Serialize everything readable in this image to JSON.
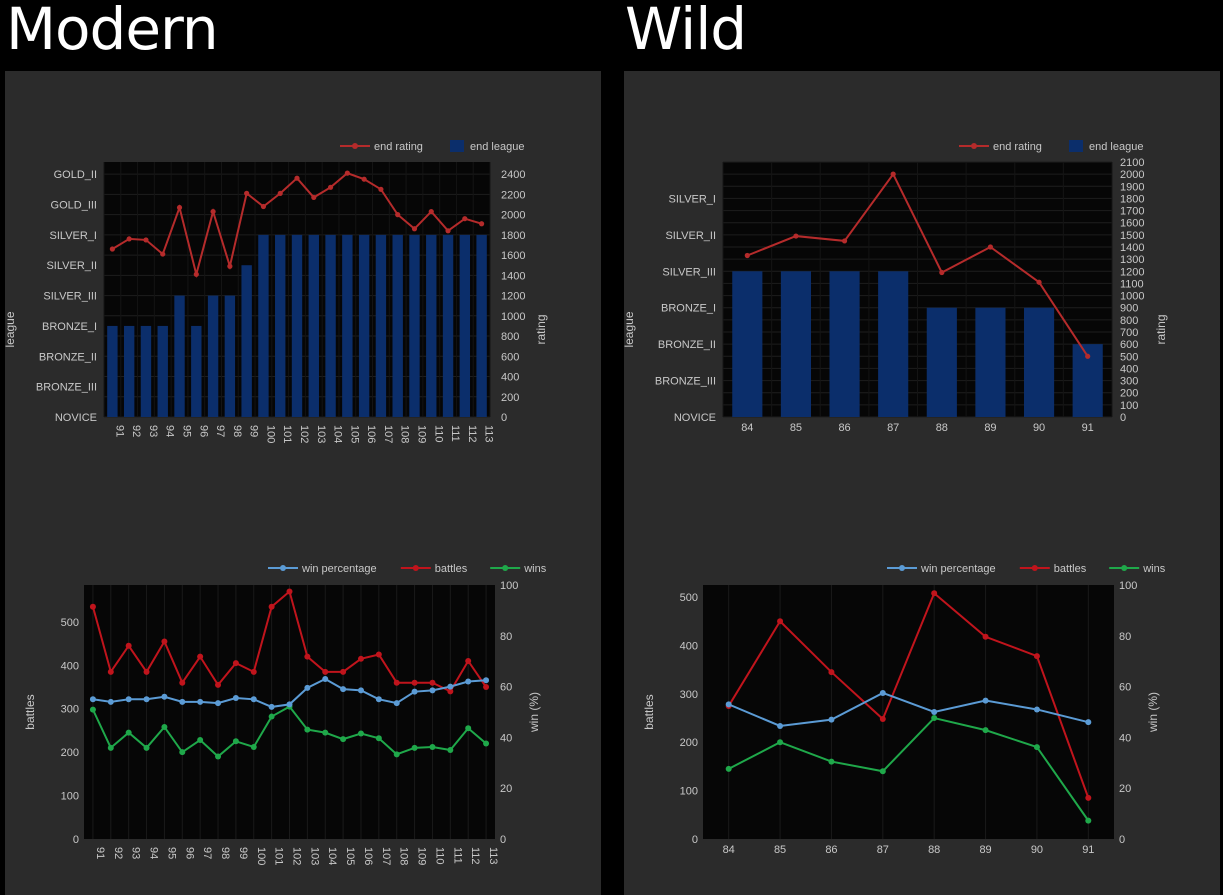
{
  "page": {
    "left_title": "Modern",
    "right_title": "Wild"
  },
  "colors": {
    "background": "#000000",
    "panel": "#2b2b2b",
    "plot": "#060606",
    "rating_line": "#b52b2b",
    "league_bar": "#0b2e6b",
    "win_percentage": "#5b9bd5",
    "battles": "#c0141c",
    "wins": "#1fa84a",
    "text": "#c8c8c8"
  },
  "chart_data": [
    {
      "id": "modern-rating",
      "type": "bar",
      "legend": [
        "end rating",
        "end league"
      ],
      "legend_position": "top-right",
      "ylabel_left": "league",
      "ylabel_right": "rating",
      "categories": [
        "91",
        "92",
        "93",
        "94",
        "95",
        "96",
        "97",
        "98",
        "99",
        "100",
        "101",
        "102",
        "103",
        "104",
        "105",
        "106",
        "107",
        "108",
        "109",
        "110",
        "111",
        "112",
        "113"
      ],
      "league_ticks": [
        "NOVICE",
        "BRONZE_III",
        "BRONZE_II",
        "BRONZE_I",
        "SILVER_III",
        "SILVER_II",
        "SILVER_I",
        "GOLD_III",
        "GOLD_II"
      ],
      "league_values": [
        "BRONZE_I",
        "BRONZE_I",
        "BRONZE_I",
        "BRONZE_I",
        "SILVER_III",
        "BRONZE_I",
        "SILVER_III",
        "SILVER_III",
        "SILVER_II",
        "SILVER_I",
        "SILVER_I",
        "SILVER_I",
        "SILVER_I",
        "SILVER_I",
        "SILVER_I",
        "SILVER_I",
        "SILVER_I",
        "SILVER_I",
        "SILVER_I",
        "SILVER_I",
        "SILVER_I",
        "SILVER_I",
        "SILVER_I"
      ],
      "rating_values": [
        1660,
        1760,
        1750,
        1610,
        2070,
        1410,
        2030,
        1490,
        2210,
        2080,
        2210,
        2360,
        2170,
        2270,
        2410,
        2350,
        2250,
        2000,
        1860,
        2030,
        1840,
        1960,
        1910
      ],
      "rating_ticks": [
        0,
        200,
        400,
        600,
        800,
        1000,
        1200,
        1400,
        1600,
        1800,
        2000,
        2200,
        2400
      ],
      "rating_range": [
        0,
        2520
      ]
    },
    {
      "id": "wild-rating",
      "type": "bar",
      "legend": [
        "end rating",
        "end league"
      ],
      "legend_position": "top-right",
      "ylabel_left": "league",
      "ylabel_right": "rating",
      "categories": [
        "84",
        "85",
        "86",
        "87",
        "88",
        "89",
        "90",
        "91"
      ],
      "league_ticks": [
        "NOVICE",
        "BRONZE_III",
        "BRONZE_II",
        "BRONZE_I",
        "SILVER_III",
        "SILVER_II",
        "SILVER_I"
      ],
      "league_values": [
        "SILVER_III",
        "SILVER_III",
        "SILVER_III",
        "SILVER_III",
        "BRONZE_I",
        "BRONZE_I",
        "BRONZE_I",
        "BRONZE_II"
      ],
      "rating_values": [
        1330,
        1490,
        1450,
        2000,
        1190,
        1400,
        1110,
        500
      ],
      "rating_ticks": [
        0,
        100,
        200,
        300,
        400,
        500,
        600,
        700,
        800,
        900,
        1000,
        1100,
        1200,
        1300,
        1400,
        1500,
        1600,
        1700,
        1800,
        1900,
        2000,
        2100
      ],
      "rating_range": [
        0,
        2100
      ]
    },
    {
      "id": "modern-battles",
      "type": "line",
      "legend": [
        "win percentage",
        "battles",
        "wins"
      ],
      "legend_position": "top-right",
      "ylabel_left": "battles",
      "ylabel_right": "win (%)",
      "categories": [
        "91",
        "92",
        "93",
        "94",
        "95",
        "96",
        "97",
        "98",
        "99",
        "100",
        "101",
        "102",
        "103",
        "104",
        "105",
        "106",
        "107",
        "108",
        "109",
        "110",
        "111",
        "112",
        "113"
      ],
      "series": [
        {
          "name": "win percentage",
          "axis": "right",
          "values": [
            55,
            54,
            55,
            55,
            56,
            54,
            54,
            53.5,
            55.5,
            55,
            52,
            53,
            59.5,
            63,
            59,
            58.5,
            55,
            53.5,
            58,
            58.5,
            60,
            62,
            62.5
          ]
        },
        {
          "name": "battles",
          "axis": "left",
          "values": [
            535,
            385,
            445,
            385,
            455,
            360,
            420,
            355,
            405,
            385,
            535,
            570,
            420,
            385,
            385,
            415,
            425,
            360,
            360,
            360,
            340,
            410,
            350
          ]
        },
        {
          "name": "wins",
          "axis": "left",
          "values": [
            298,
            210,
            245,
            210,
            258,
            200,
            228,
            190,
            225,
            212,
            282,
            305,
            252,
            245,
            230,
            243,
            232,
            195,
            210,
            212,
            205,
            255,
            220
          ]
        }
      ],
      "battles_ticks": [
        0,
        100,
        200,
        300,
        400,
        500
      ],
      "battles_range": [
        0,
        585
      ],
      "win_ticks": [
        0,
        20,
        40,
        60,
        80,
        100
      ],
      "win_range": [
        0,
        100
      ]
    },
    {
      "id": "wild-battles",
      "type": "line",
      "legend": [
        "win percentage",
        "battles",
        "wins"
      ],
      "legend_position": "top-right",
      "ylabel_left": "battles",
      "ylabel_right": "win (%)",
      "categories": [
        "84",
        "85",
        "86",
        "87",
        "88",
        "89",
        "90",
        "91"
      ],
      "series": [
        {
          "name": "win percentage",
          "axis": "right",
          "values": [
            53,
            44.5,
            47,
            57.5,
            50,
            54.5,
            51,
            46
          ]
        },
        {
          "name": "battles",
          "axis": "left",
          "values": [
            275,
            450,
            345,
            248,
            508,
            418,
            378,
            85
          ]
        },
        {
          "name": "wins",
          "axis": "left",
          "values": [
            145,
            200,
            160,
            140,
            250,
            225,
            190,
            38
          ]
        }
      ],
      "battles_ticks": [
        0,
        100,
        200,
        300,
        400,
        500
      ],
      "battles_range": [
        0,
        525
      ],
      "win_ticks": [
        0,
        20,
        40,
        60,
        80,
        100
      ],
      "win_range": [
        0,
        100
      ]
    }
  ]
}
